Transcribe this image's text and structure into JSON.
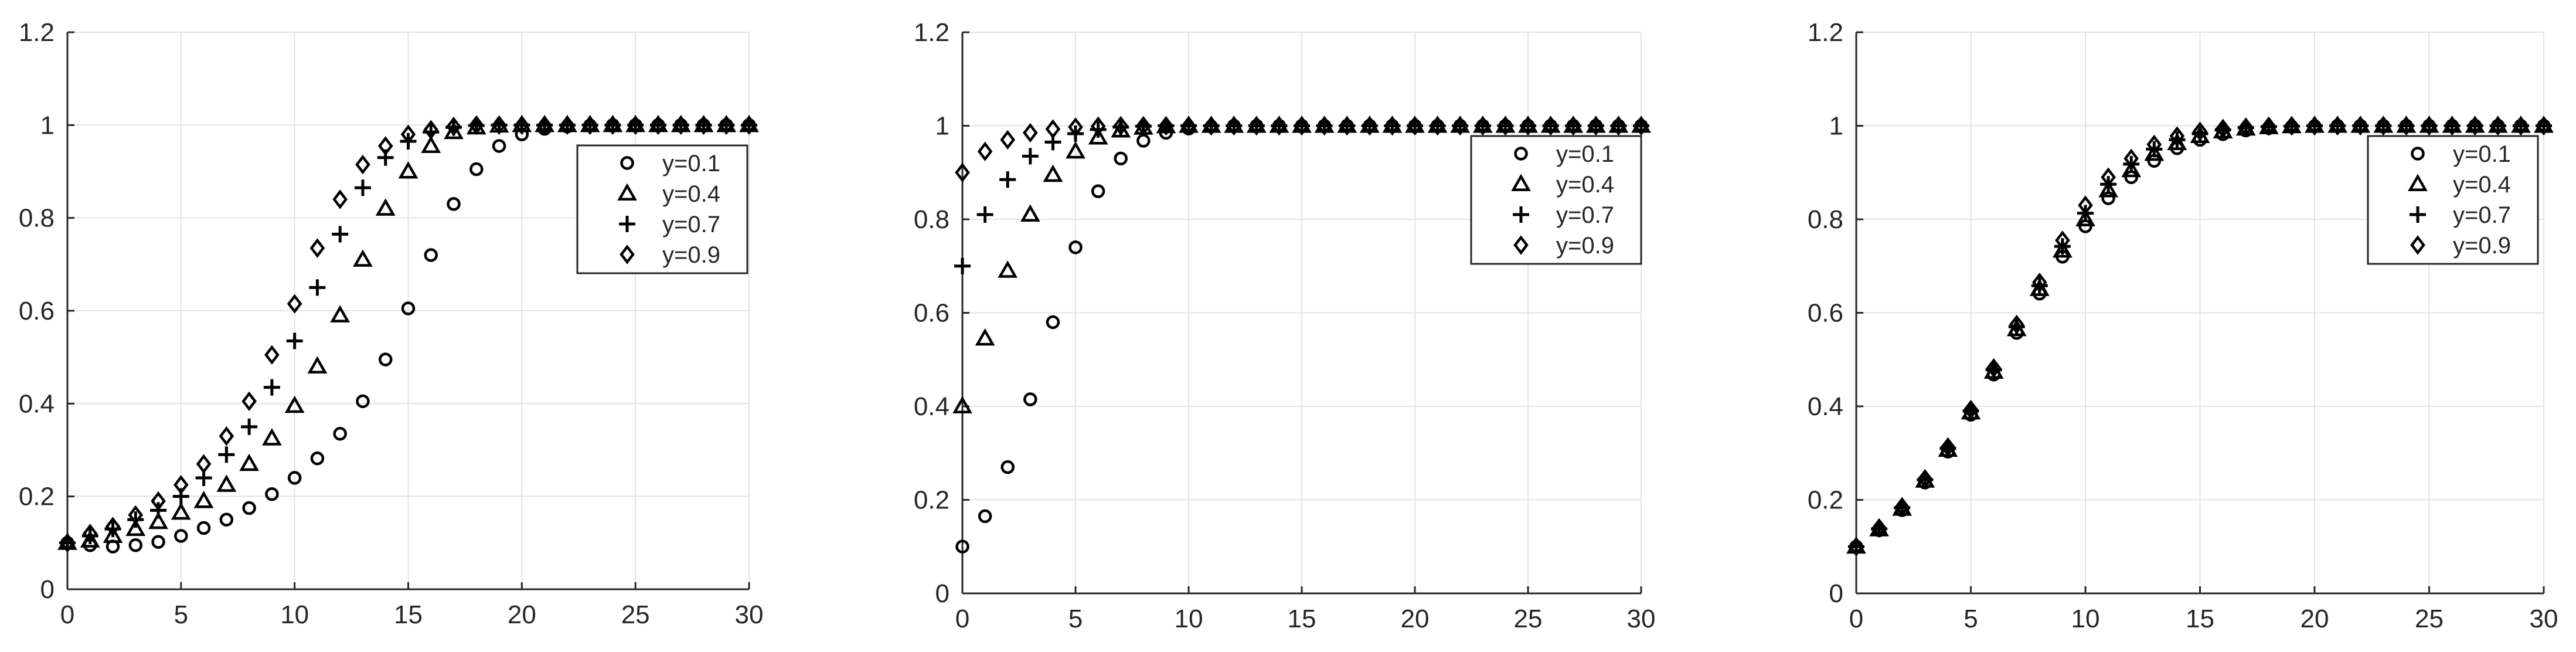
{
  "chart_data": [
    {
      "type": "scatter",
      "title": "",
      "xlabel": "",
      "ylabel": "",
      "xlim": [
        0,
        30
      ],
      "ylim": [
        0,
        1.2
      ],
      "xticks": [
        "0",
        "5",
        "10",
        "15",
        "20",
        "25",
        "30"
      ],
      "yticks": [
        "0",
        "0.2",
        "0.4",
        "0.6",
        "0.8",
        "1",
        "1.2"
      ],
      "grid": true,
      "legend_position": "top-right",
      "series": [
        {
          "name": "y=0.1",
          "marker": "circle",
          "x": [
            0,
            1,
            2,
            3,
            4,
            5,
            6,
            7,
            8,
            9,
            10,
            11,
            12,
            13,
            14,
            15,
            16,
            17,
            18,
            19,
            20,
            21,
            22,
            23,
            24,
            25,
            26,
            27,
            28,
            29,
            30
          ],
          "y": [
            0.1,
            0.095,
            0.092,
            0.095,
            0.102,
            0.115,
            0.132,
            0.15,
            0.175,
            0.205,
            0.24,
            0.282,
            0.335,
            0.405,
            0.495,
            0.605,
            0.72,
            0.83,
            0.905,
            0.955,
            0.98,
            0.992,
            0.997,
            0.999,
            1,
            1,
            1,
            1,
            1,
            1,
            1
          ]
        },
        {
          "name": "y=0.4",
          "marker": "triangle",
          "x": [
            0,
            1,
            2,
            3,
            4,
            5,
            6,
            7,
            8,
            9,
            10,
            11,
            12,
            13,
            14,
            15,
            16,
            17,
            18,
            19,
            20,
            21,
            22,
            23,
            24,
            25,
            26,
            27,
            28,
            29,
            30
          ],
          "y": [
            0.1,
            0.105,
            0.115,
            0.13,
            0.145,
            0.165,
            0.19,
            0.225,
            0.27,
            0.325,
            0.395,
            0.48,
            0.59,
            0.71,
            0.82,
            0.9,
            0.955,
            0.985,
            0.995,
            0.999,
            1,
            1,
            1,
            1,
            1,
            1,
            1,
            1,
            1,
            1,
            1
          ]
        },
        {
          "name": "y=0.7",
          "marker": "plus",
          "x": [
            0,
            1,
            2,
            3,
            4,
            5,
            6,
            7,
            8,
            9,
            10,
            11,
            12,
            13,
            14,
            15,
            16,
            17,
            18,
            19,
            20,
            21,
            22,
            23,
            24,
            25,
            26,
            27,
            28,
            29,
            30
          ],
          "y": [
            0.1,
            0.115,
            0.13,
            0.15,
            0.17,
            0.2,
            0.24,
            0.29,
            0.35,
            0.435,
            0.535,
            0.65,
            0.765,
            0.865,
            0.93,
            0.965,
            0.985,
            0.995,
            0.999,
            1,
            1,
            1,
            1,
            1,
            1,
            1,
            1,
            1,
            1,
            1,
            1
          ]
        },
        {
          "name": "y=0.9",
          "marker": "diamond",
          "x": [
            0,
            1,
            2,
            3,
            4,
            5,
            6,
            7,
            8,
            9,
            10,
            11,
            12,
            13,
            14,
            15,
            16,
            17,
            18,
            19,
            20,
            21,
            22,
            23,
            24,
            25,
            26,
            27,
            28,
            29,
            30
          ],
          "y": [
            0.1,
            0.12,
            0.135,
            0.16,
            0.19,
            0.225,
            0.27,
            0.33,
            0.405,
            0.505,
            0.615,
            0.735,
            0.84,
            0.915,
            0.955,
            0.98,
            0.99,
            0.997,
            1,
            1,
            1,
            1,
            1,
            1,
            1,
            1,
            1,
            1,
            1,
            1,
            1
          ]
        }
      ]
    },
    {
      "type": "scatter",
      "title": "",
      "xlabel": "",
      "ylabel": "",
      "xlim": [
        0,
        30
      ],
      "ylim": [
        0,
        1.2
      ],
      "xticks": [
        "0",
        "5",
        "10",
        "15",
        "20",
        "25",
        "30"
      ],
      "yticks": [
        "0",
        "0.2",
        "0.4",
        "0.6",
        "0.8",
        "1",
        "1.2"
      ],
      "grid": true,
      "legend_position": "top-right",
      "series": [
        {
          "name": "y=0.1",
          "marker": "circle",
          "x": [
            0,
            1,
            2,
            3,
            4,
            5,
            6,
            7,
            8,
            9,
            10,
            11,
            12,
            13,
            14,
            15,
            16,
            17,
            18,
            19,
            20,
            21,
            22,
            23,
            24,
            25,
            26,
            27,
            28,
            29,
            30
          ],
          "y": [
            0.1,
            0.165,
            0.27,
            0.415,
            0.58,
            0.74,
            0.86,
            0.93,
            0.968,
            0.985,
            0.994,
            0.998,
            1,
            1,
            1,
            1,
            1,
            1,
            1,
            1,
            1,
            1,
            1,
            1,
            1,
            1,
            1,
            1,
            1,
            1,
            1
          ]
        },
        {
          "name": "y=0.4",
          "marker": "triangle",
          "x": [
            0,
            1,
            2,
            3,
            4,
            5,
            6,
            7,
            8,
            9,
            10,
            11,
            12,
            13,
            14,
            15,
            16,
            17,
            18,
            19,
            20,
            21,
            22,
            23,
            24,
            25,
            26,
            27,
            28,
            29,
            30
          ],
          "y": [
            0.4,
            0.545,
            0.69,
            0.81,
            0.895,
            0.945,
            0.975,
            0.99,
            0.996,
            0.999,
            1,
            1,
            1,
            1,
            1,
            1,
            1,
            1,
            1,
            1,
            1,
            1,
            1,
            1,
            1,
            1,
            1,
            1,
            1,
            1,
            1
          ]
        },
        {
          "name": "y=0.7",
          "marker": "plus",
          "x": [
            0,
            1,
            2,
            3,
            4,
            5,
            6,
            7,
            8,
            9,
            10,
            11,
            12,
            13,
            14,
            15,
            16,
            17,
            18,
            19,
            20,
            21,
            22,
            23,
            24,
            25,
            26,
            27,
            28,
            29,
            30
          ],
          "y": [
            0.7,
            0.81,
            0.885,
            0.935,
            0.965,
            0.983,
            0.992,
            0.997,
            0.999,
            1,
            1,
            1,
            1,
            1,
            1,
            1,
            1,
            1,
            1,
            1,
            1,
            1,
            1,
            1,
            1,
            1,
            1,
            1,
            1,
            1,
            1
          ]
        },
        {
          "name": "y=0.9",
          "marker": "diamond",
          "x": [
            0,
            1,
            2,
            3,
            4,
            5,
            6,
            7,
            8,
            9,
            10,
            11,
            12,
            13,
            14,
            15,
            16,
            17,
            18,
            19,
            20,
            21,
            22,
            23,
            24,
            25,
            26,
            27,
            28,
            29,
            30
          ],
          "y": [
            0.9,
            0.945,
            0.97,
            0.985,
            0.993,
            0.997,
            0.999,
            1,
            1,
            1,
            1,
            1,
            1,
            1,
            1,
            1,
            1,
            1,
            1,
            1,
            1,
            1,
            1,
            1,
            1,
            1,
            1,
            1,
            1,
            1,
            1
          ]
        }
      ]
    },
    {
      "type": "scatter",
      "title": "",
      "xlabel": "",
      "ylabel": "",
      "xlim": [
        0,
        30
      ],
      "ylim": [
        0,
        1.2
      ],
      "xticks": [
        "0",
        "5",
        "10",
        "15",
        "20",
        "25",
        "30"
      ],
      "yticks": [
        "0",
        "0.2",
        "0.4",
        "0.6",
        "0.8",
        "1",
        "1.2"
      ],
      "grid": true,
      "legend_position": "top-right",
      "series": [
        {
          "name": "y=0.1",
          "marker": "circle",
          "x": [
            0,
            1,
            2,
            3,
            4,
            5,
            6,
            7,
            8,
            9,
            10,
            11,
            12,
            13,
            14,
            15,
            16,
            17,
            18,
            19,
            20,
            21,
            22,
            23,
            24,
            25,
            26,
            27,
            28,
            29,
            30
          ],
          "y": [
            0.1,
            0.135,
            0.178,
            0.237,
            0.303,
            0.382,
            0.468,
            0.557,
            0.641,
            0.72,
            0.785,
            0.845,
            0.89,
            0.925,
            0.952,
            0.97,
            0.982,
            0.99,
            0.995,
            0.998,
            0.999,
            1,
            1,
            1,
            1,
            1,
            1,
            1,
            1,
            1,
            1
          ]
        },
        {
          "name": "y=0.4",
          "marker": "triangle",
          "x": [
            0,
            1,
            2,
            3,
            4,
            5,
            6,
            7,
            8,
            9,
            10,
            11,
            12,
            13,
            14,
            15,
            16,
            17,
            18,
            19,
            20,
            21,
            22,
            23,
            24,
            25,
            26,
            27,
            28,
            29,
            30
          ],
          "y": [
            0.1,
            0.137,
            0.181,
            0.241,
            0.307,
            0.387,
            0.474,
            0.565,
            0.651,
            0.733,
            0.8,
            0.862,
            0.905,
            0.94,
            0.963,
            0.978,
            0.988,
            0.994,
            0.997,
            0.999,
            1,
            1,
            1,
            1,
            1,
            1,
            1,
            1,
            1,
            1,
            1
          ]
        },
        {
          "name": "y=0.7",
          "marker": "plus",
          "x": [
            0,
            1,
            2,
            3,
            4,
            5,
            6,
            7,
            8,
            9,
            10,
            11,
            12,
            13,
            14,
            15,
            16,
            17,
            18,
            19,
            20,
            21,
            22,
            23,
            24,
            25,
            26,
            27,
            28,
            29,
            30
          ],
          "y": [
            0.1,
            0.138,
            0.183,
            0.243,
            0.31,
            0.39,
            0.478,
            0.57,
            0.658,
            0.742,
            0.813,
            0.875,
            0.918,
            0.95,
            0.97,
            0.983,
            0.991,
            0.996,
            0.998,
            0.999,
            1,
            1,
            1,
            1,
            1,
            1,
            1,
            1,
            1,
            1,
            1
          ]
        },
        {
          "name": "y=0.9",
          "marker": "diamond",
          "x": [
            0,
            1,
            2,
            3,
            4,
            5,
            6,
            7,
            8,
            9,
            10,
            11,
            12,
            13,
            14,
            15,
            16,
            17,
            18,
            19,
            20,
            21,
            22,
            23,
            24,
            25,
            26,
            27,
            28,
            29,
            30
          ],
          "y": [
            0.1,
            0.14,
            0.185,
            0.245,
            0.313,
            0.393,
            0.482,
            0.575,
            0.665,
            0.755,
            0.83,
            0.89,
            0.93,
            0.96,
            0.978,
            0.988,
            0.994,
            0.997,
            0.999,
            1,
            1,
            1,
            1,
            1,
            1,
            1,
            1,
            1,
            1,
            1,
            1
          ]
        }
      ]
    }
  ]
}
